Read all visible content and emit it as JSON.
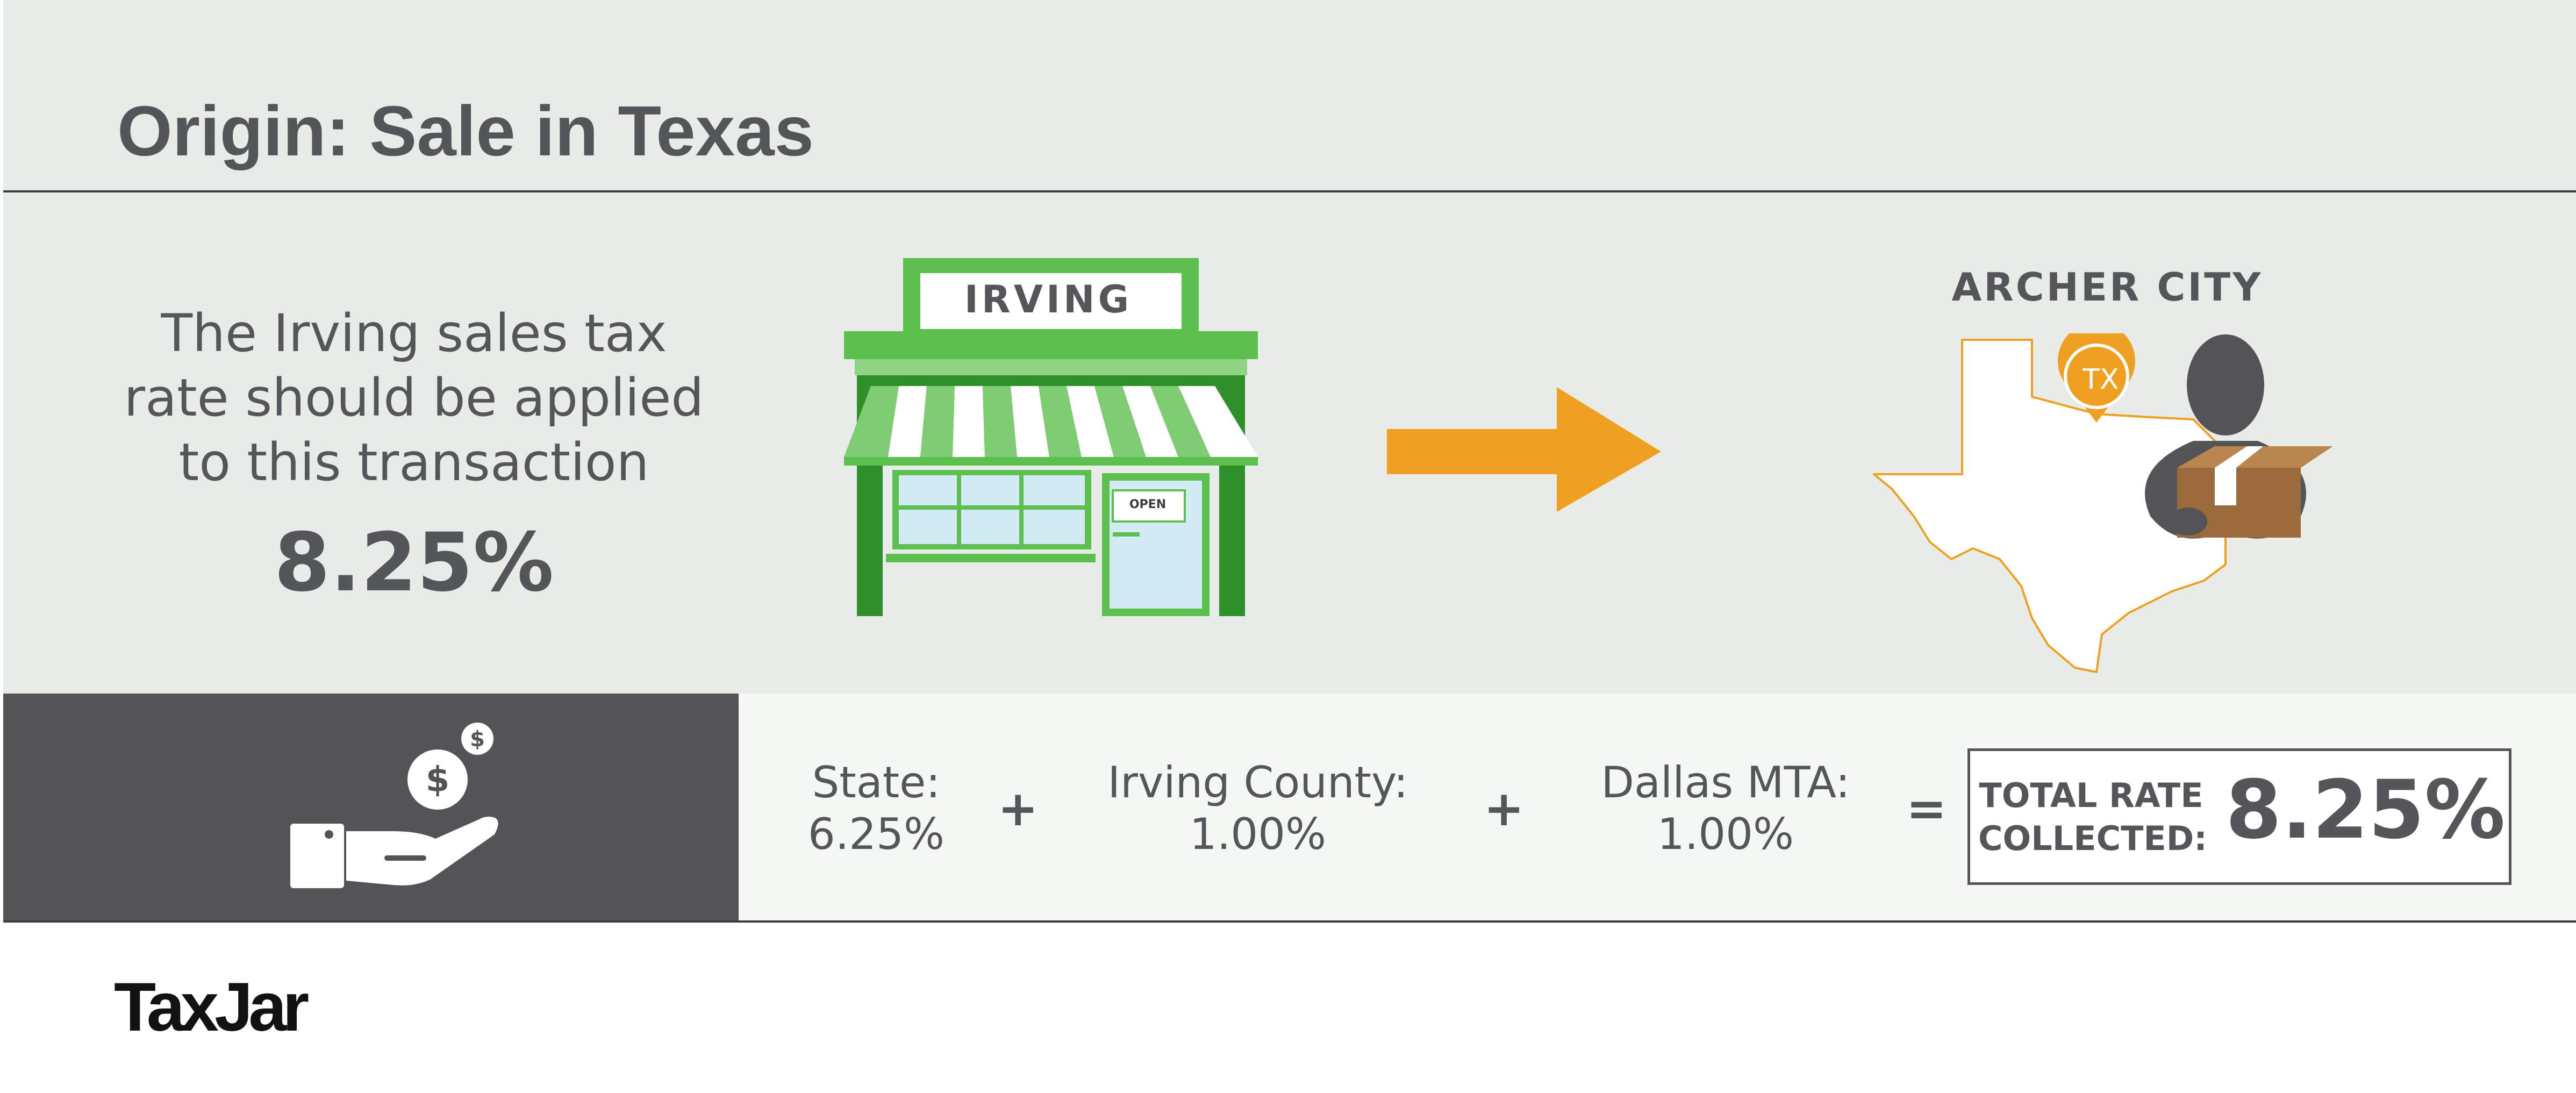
{
  "title": "Origin: Sale in Texas",
  "description": {
    "lines": [
      "The Irving sales tax",
      "rate should be applied",
      "to this transaction"
    ],
    "rate": "8.25%"
  },
  "store": {
    "sign": "IRVING",
    "door_sign": "OPEN"
  },
  "destination": {
    "city": "ARCHER CITY",
    "state_badge": "TX"
  },
  "breakdown": {
    "state": {
      "label": "State:",
      "value": "6.25%"
    },
    "county": {
      "label": "Irving County:",
      "value": "1.00%"
    },
    "mta": {
      "label": "Dallas MTA:",
      "value": "1.00%"
    },
    "plus": "+",
    "equals": "=",
    "total": {
      "label_line1": "TOTAL RATE",
      "label_line2": "COLLECTED:",
      "value": "8.25%"
    }
  },
  "brand": "TaxJar",
  "colors": {
    "background": "#e8ece8",
    "text": "#55565a",
    "store_green": "#5cc04f",
    "arrow_orange": "#f0a020",
    "dark_panel": "#545457",
    "box_brown": "#9a6a3a"
  },
  "icons": [
    "storefront-icon",
    "arrow-right-icon",
    "texas-map-icon",
    "location-pin-icon",
    "delivery-person-icon",
    "hand-money-icon"
  ]
}
